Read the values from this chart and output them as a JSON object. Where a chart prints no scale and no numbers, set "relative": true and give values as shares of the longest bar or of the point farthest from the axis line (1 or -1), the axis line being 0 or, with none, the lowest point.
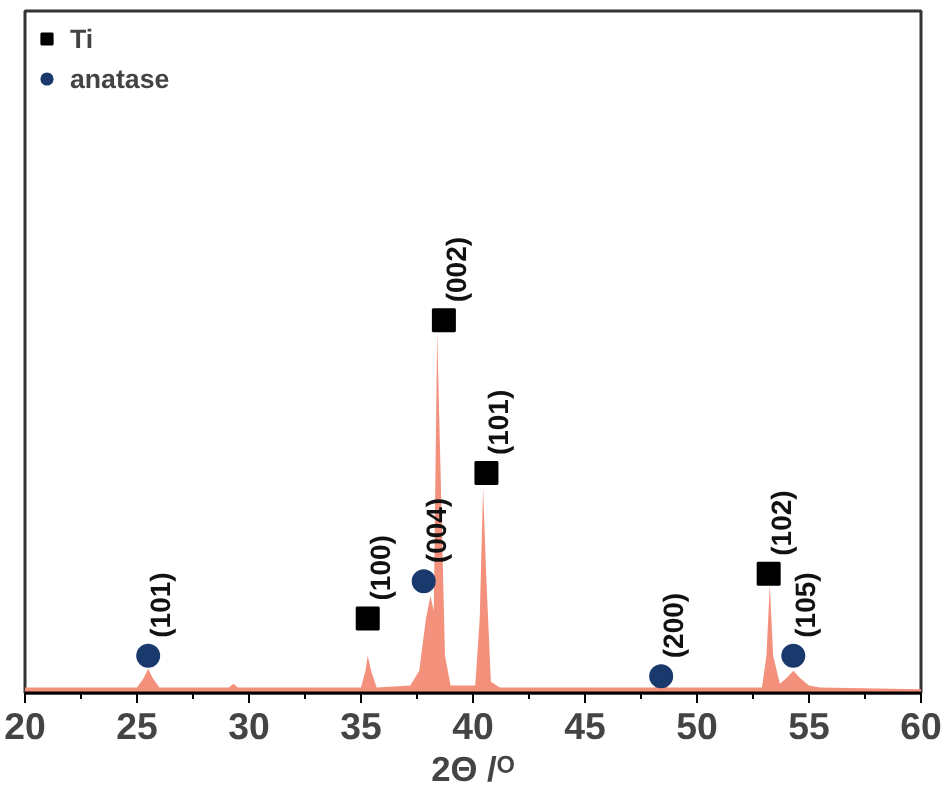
{
  "chart_data": {
    "type": "area",
    "relative": true,
    "xlabel": "2Θ /ᴼ",
    "xlim": [
      20,
      60
    ],
    "xticks": [
      20,
      25,
      30,
      35,
      40,
      45,
      50,
      55,
      60
    ],
    "legend": "top left",
    "grid": false,
    "series": [
      {
        "color": "#f4917c",
        "x": [
          20,
          25.0,
          25.3,
          25.5,
          25.7,
          26.0,
          29.1,
          29.3,
          29.5,
          35.0,
          35.2,
          35.3,
          35.45,
          35.7,
          37.2,
          37.6,
          37.9,
          38.1,
          38.25,
          38.4,
          38.55,
          38.75,
          39.0,
          40.1,
          40.3,
          40.45,
          40.6,
          40.8,
          41.2,
          48.1,
          48.4,
          48.7,
          52.9,
          53.1,
          53.25,
          53.4,
          53.7,
          54.0,
          54.3,
          54.6,
          55.0,
          55.5,
          60
        ],
        "values": [
          0.015,
          0.015,
          0.04,
          0.065,
          0.04,
          0.015,
          0.015,
          0.025,
          0.015,
          0.015,
          0.06,
          0.1,
          0.06,
          0.015,
          0.02,
          0.06,
          0.2,
          0.26,
          0.22,
          0.97,
          0.6,
          0.1,
          0.02,
          0.02,
          0.2,
          0.55,
          0.3,
          0.03,
          0.015,
          0.015,
          0.025,
          0.015,
          0.015,
          0.1,
          0.29,
          0.1,
          0.025,
          0.04,
          0.06,
          0.04,
          0.02,
          0.015,
          0.01
        ]
      },
      {
        "type": "scatter",
        "name": "Ti",
        "marker": "square",
        "color": "#000000",
        "x": [
          35.3,
          38.7,
          40.6,
          53.2
        ],
        "values": [
          0.2,
          1.0,
          0.59,
          0.32
        ]
      },
      {
        "type": "scatter",
        "name": "anatase",
        "marker": "circle",
        "color": "#1a3a6e",
        "x": [
          25.5,
          37.8,
          48.4,
          54.3
        ],
        "values": [
          0.1,
          0.3,
          0.045,
          0.1
        ]
      }
    ],
    "annotations": [
      {
        "text": "(101)",
        "x": 25.5,
        "y": 0.1
      },
      {
        "text": "(100)",
        "x": 35.3,
        "y": 0.2
      },
      {
        "text": "(004)",
        "x": 37.8,
        "y": 0.3
      },
      {
        "text": "(002)",
        "x": 38.7,
        "y": 1.0
      },
      {
        "text": "(101)",
        "x": 40.6,
        "y": 0.59
      },
      {
        "text": "(200)",
        "x": 48.4,
        "y": 0.045
      },
      {
        "text": "(102)",
        "x": 53.2,
        "y": 0.32
      },
      {
        "text": "(105)",
        "x": 54.3,
        "y": 0.1
      }
    ]
  }
}
